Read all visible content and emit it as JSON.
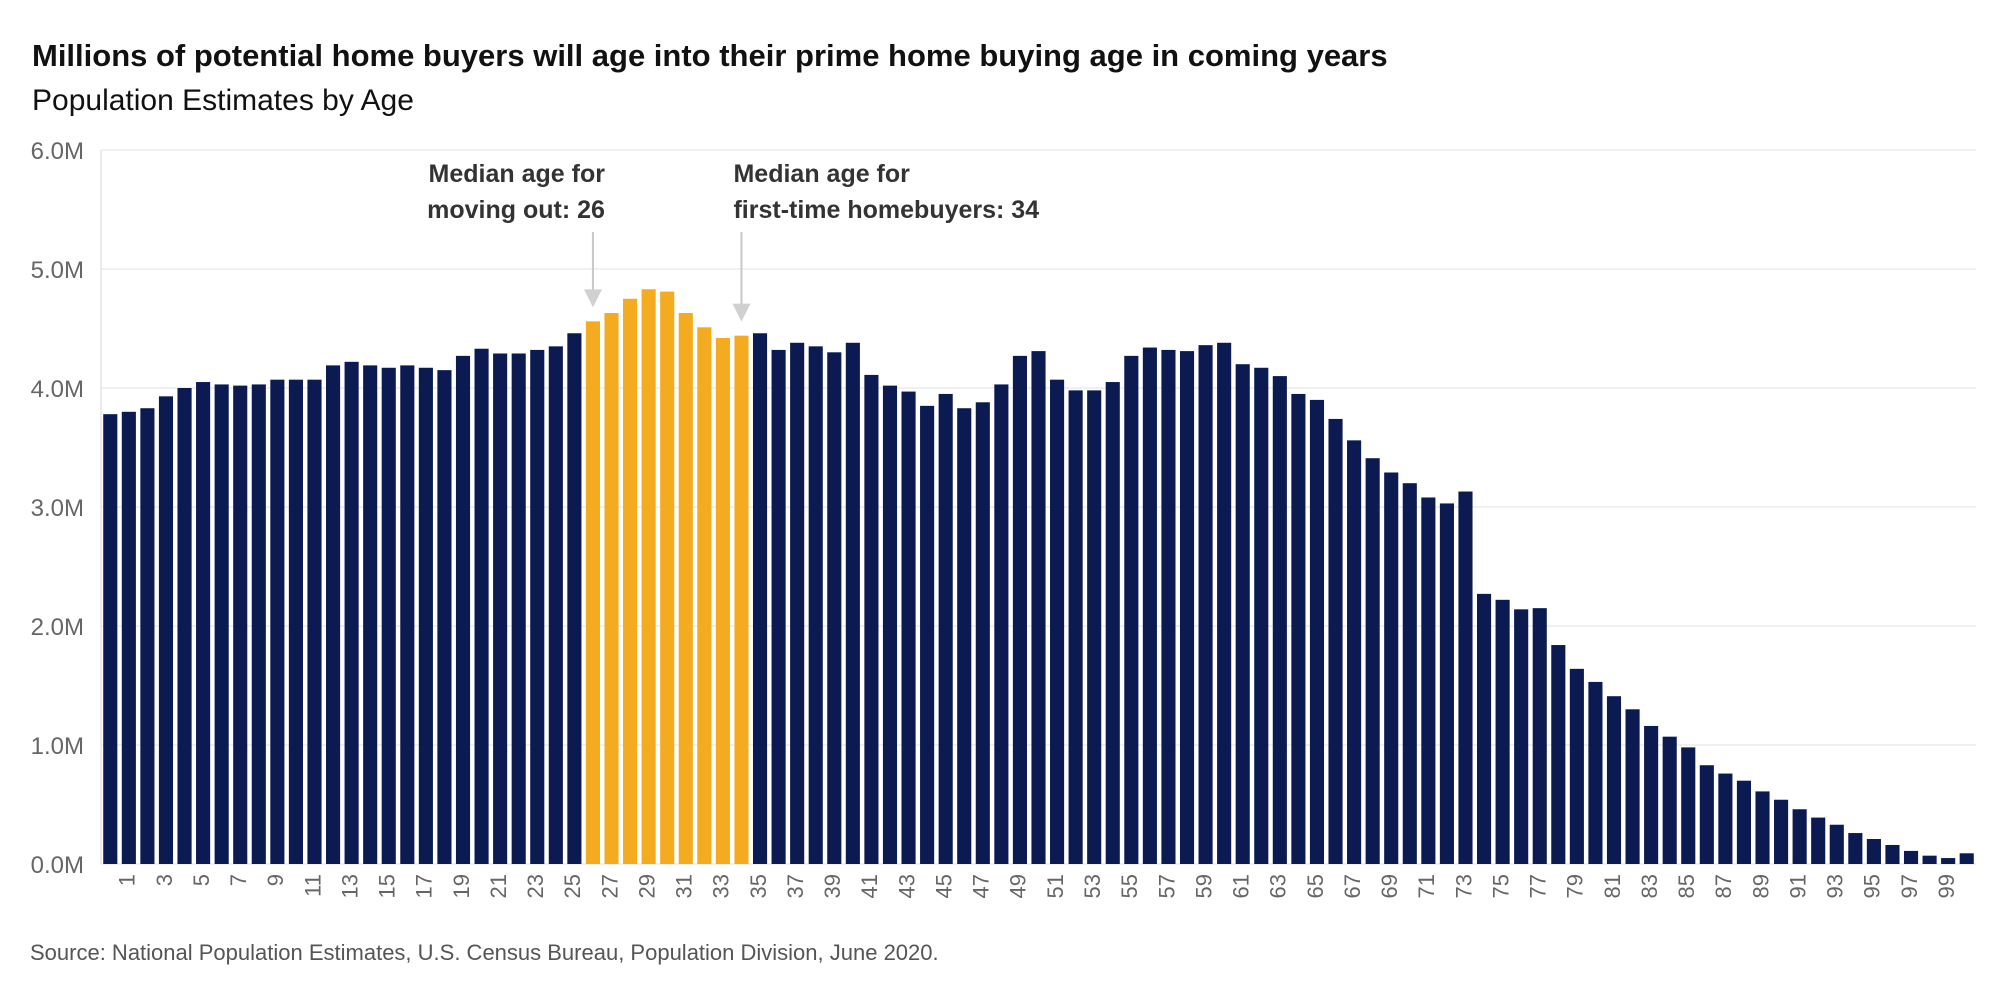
{
  "chart_data": {
    "type": "bar",
    "title": "Millions of potential home buyers will age into their prime home buying age in coming years",
    "subtitle": "Population Estimates by Age",
    "source": "Source: National Population Estimates, U.S. Census Bureau, Population Division, June 2020.",
    "xlabel": "",
    "ylabel": "",
    "ylim": [
      0,
      6000000
    ],
    "yticks": [
      {
        "value": 0,
        "label": "0.0M"
      },
      {
        "value": 1000000,
        "label": "1.0M"
      },
      {
        "value": 2000000,
        "label": "2.0M"
      },
      {
        "value": 3000000,
        "label": "3.0M"
      },
      {
        "value": 4000000,
        "label": "4.0M"
      },
      {
        "value": 5000000,
        "label": "5.0M"
      },
      {
        "value": 6000000,
        "label": "6.0M"
      }
    ],
    "grid": true,
    "legend": "none",
    "base_color": "#0c1a52",
    "highlight_color": "#f5ab20",
    "highlight_range": [
      26,
      34
    ],
    "categories": [
      0,
      1,
      2,
      3,
      4,
      5,
      6,
      7,
      8,
      9,
      10,
      11,
      12,
      13,
      14,
      15,
      16,
      17,
      18,
      19,
      20,
      21,
      22,
      23,
      24,
      25,
      26,
      27,
      28,
      29,
      30,
      31,
      32,
      33,
      34,
      35,
      36,
      37,
      38,
      39,
      40,
      41,
      42,
      43,
      44,
      45,
      46,
      47,
      48,
      49,
      50,
      51,
      52,
      53,
      54,
      55,
      56,
      57,
      58,
      59,
      60,
      61,
      62,
      63,
      64,
      65,
      66,
      67,
      68,
      69,
      70,
      71,
      72,
      73,
      74,
      75,
      76,
      77,
      78,
      79,
      80,
      81,
      82,
      83,
      84,
      85,
      86,
      87,
      88,
      89,
      90,
      91,
      92,
      93,
      94,
      95,
      96,
      97,
      98,
      99,
      100
    ],
    "tick_labels": [
      "1",
      "3",
      "5",
      "7",
      "9",
      "11",
      "13",
      "15",
      "17",
      "19",
      "21",
      "23",
      "25",
      "27",
      "29",
      "31",
      "33",
      "35",
      "37",
      "39",
      "41",
      "43",
      "45",
      "47",
      "49",
      "51",
      "53",
      "55",
      "57",
      "59",
      "61",
      "63",
      "65",
      "67",
      "69",
      "71",
      "73",
      "75",
      "77",
      "79",
      "81",
      "83",
      "85",
      "87",
      "89",
      "91",
      "93",
      "95",
      "97",
      "99"
    ],
    "values": [
      3780000,
      3800000,
      3830000,
      3930000,
      4000000,
      4050000,
      4030000,
      4020000,
      4030000,
      4070000,
      4070000,
      4070000,
      4190000,
      4220000,
      4190000,
      4170000,
      4190000,
      4170000,
      4150000,
      4270000,
      4330000,
      4290000,
      4290000,
      4320000,
      4350000,
      4460000,
      4560000,
      4630000,
      4750000,
      4830000,
      4810000,
      4630000,
      4510000,
      4420000,
      4440000,
      4460000,
      4320000,
      4380000,
      4350000,
      4300000,
      4380000,
      4110000,
      4020000,
      3970000,
      3850000,
      3950000,
      3830000,
      3880000,
      4030000,
      4270000,
      4310000,
      4070000,
      3980000,
      3980000,
      4050000,
      4270000,
      4340000,
      4320000,
      4310000,
      4360000,
      4380000,
      4200000,
      4170000,
      4100000,
      3950000,
      3900000,
      3740000,
      3560000,
      3410000,
      3290000,
      3200000,
      3080000,
      3030000,
      3130000,
      2270000,
      2220000,
      2140000,
      2150000,
      1840000,
      1640000,
      1530000,
      1410000,
      1300000,
      1160000,
      1070000,
      980000,
      830000,
      760000,
      700000,
      610000,
      540000,
      460000,
      390000,
      330000,
      260000,
      210000,
      160000,
      110000,
      70000,
      50000,
      90000
    ],
    "annotations": [
      {
        "lines": [
          "Median age for",
          "moving out: 26"
        ],
        "age": 26,
        "align": "right"
      },
      {
        "lines": [
          "Median age for",
          "first-time homebuyers: 34"
        ],
        "age": 34,
        "align": "left"
      }
    ]
  }
}
